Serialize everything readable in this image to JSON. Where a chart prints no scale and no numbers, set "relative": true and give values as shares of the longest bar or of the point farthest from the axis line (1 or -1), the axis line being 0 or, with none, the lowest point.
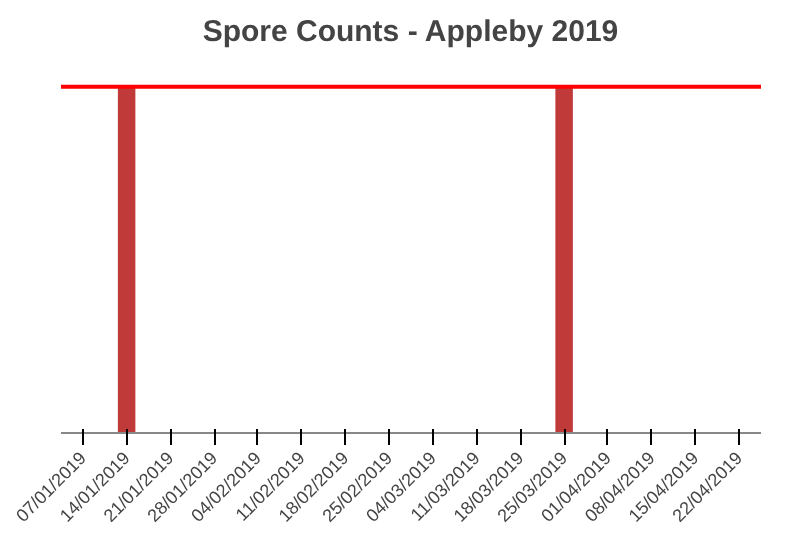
{
  "chart_data": {
    "type": "bar",
    "title": "Spore Counts - Appleby 2019",
    "categories": [
      "07/01/2019",
      "14/01/2019",
      "21/01/2019",
      "28/01/2019",
      "04/02/2019",
      "11/02/2019",
      "18/02/2019",
      "25/02/2019",
      "04/03/2019",
      "11/03/2019",
      "18/03/2019",
      "25/03/2019",
      "01/04/2019",
      "08/04/2019",
      "15/04/2019",
      "22/04/2019"
    ],
    "values": [
      0,
      1,
      0,
      0,
      0,
      0,
      0,
      0,
      0,
      0,
      0,
      1,
      0,
      0,
      0,
      0
    ],
    "color": "#c03a3a",
    "relative": true,
    "ref_lines": [
      {
        "axis": "y",
        "value": 1,
        "color": "#ff0000"
      }
    ]
  }
}
